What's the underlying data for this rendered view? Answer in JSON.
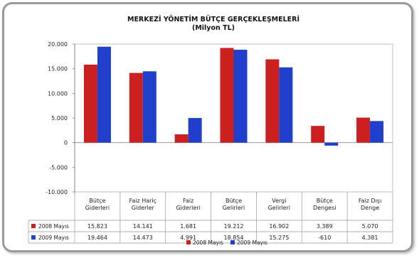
{
  "chart_data": {
    "type": "bar",
    "title": "MERKEZİ YÖNETİM BÜTÇE GERÇEKLEŞMELERİ",
    "subtitle": "(Milyon TL)",
    "categories": [
      [
        "Bütçe",
        "Giderleri"
      ],
      [
        "Faiz Hariç",
        "Giderler"
      ],
      [
        "Faiz",
        "Giderleri"
      ],
      [
        "Bütçe",
        "Gelirleri"
      ],
      [
        "Vergi",
        "Gelirleri"
      ],
      [
        "Bütçe",
        "Dengesi"
      ],
      [
        "Faiz Dışı",
        "Denge"
      ]
    ],
    "series": [
      {
        "name": "2008 Mayıs",
        "color": "#cc1f1f",
        "values": [
          15823,
          14141,
          1681,
          19212,
          16902,
          3389,
          5070
        ],
        "labels": [
          "15.823",
          "14.141",
          "1.681",
          "19.212",
          "16.902",
          "3.389",
          "5.070"
        ]
      },
      {
        "name": "2009 Mayıs",
        "color": "#1f3fcc",
        "values": [
          19464,
          14473,
          4991,
          18854,
          15275,
          -610,
          4381
        ],
        "labels": [
          "19.464",
          "14.473",
          "4.991",
          "18.854",
          "15.275",
          "-610",
          "4.381"
        ]
      }
    ],
    "ylim": [
      -10000,
      20000
    ],
    "yticks": [
      {
        "value": 20000,
        "label": "20.000"
      },
      {
        "value": 15000,
        "label": "15.000"
      },
      {
        "value": 10000,
        "label": "10.000"
      },
      {
        "value": 5000,
        "label": "5.000"
      },
      {
        "value": 0,
        "label": "0"
      },
      {
        "value": -5000,
        "label": "-5.000"
      },
      {
        "value": -10000,
        "label": "-10.000"
      }
    ],
    "grid": false,
    "legend": "bottom",
    "data_table": true
  }
}
